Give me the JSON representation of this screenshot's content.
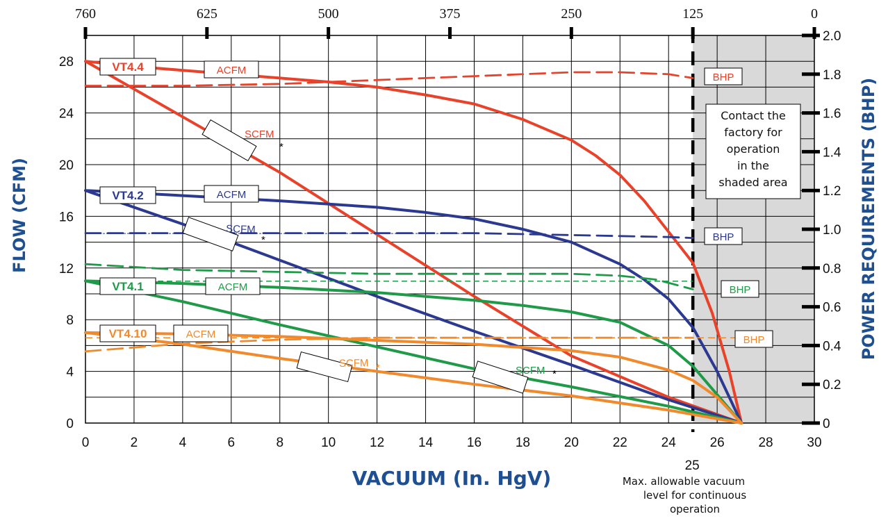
{
  "colors": {
    "VT4.4": "#e8432a",
    "VT4.2": "#2b3990",
    "VT4.1": "#1f9a48",
    "VT4.10": "#f08a2c",
    "axis_title": "#1d4f91",
    "shade": "#d9d9d9"
  },
  "chart_data": {
    "type": "line",
    "xlabel": "VACUUM (In. HgV)",
    "ylabel_left": "FLOW (CFM)",
    "ylabel_right": "POWER REQUIREMENTS (BHP)",
    "xlim": [
      0,
      30
    ],
    "ylim_left": [
      0,
      30
    ],
    "ylim_right": [
      0,
      2.0
    ],
    "grid": true,
    "x_ticks": [
      0,
      2,
      4,
      6,
      8,
      10,
      12,
      14,
      16,
      18,
      20,
      22,
      24,
      26,
      28,
      30
    ],
    "y_left_ticks": [
      0,
      4,
      8,
      12,
      16,
      20,
      24,
      28
    ],
    "y_right_ticks": [
      "0",
      "0.2",
      "0.4",
      "0.6",
      "0.8",
      "1.0",
      "1.2",
      "1.4",
      "1.6",
      "1.8",
      "2.0"
    ],
    "top_axis": {
      "labels": [
        "760",
        "625",
        "500",
        "375",
        "250",
        "125",
        "0"
      ],
      "positions_x": [
        0,
        5,
        10,
        15,
        20,
        25,
        30
      ]
    },
    "shaded_region": {
      "x_from": 25,
      "x_to": 30,
      "note": [
        "Contact the",
        "factory for",
        "operation",
        "in the",
        "shaded area"
      ]
    },
    "max_vacuum_line": {
      "x": 25,
      "label": "25",
      "caption": [
        "Max. allowable vacuum",
        "level for continuous",
        "operation"
      ]
    },
    "series": [
      {
        "model": "VT4.4",
        "name": "ACFM",
        "axis": "left",
        "style": "solid",
        "x": [
          0,
          2,
          4,
          6,
          8,
          10,
          12,
          14,
          16,
          18,
          20,
          21,
          22,
          23,
          24,
          25,
          25.8,
          26.5,
          27
        ],
        "y": [
          28,
          27.6,
          27.3,
          27,
          26.7,
          26.4,
          26,
          25.4,
          24.7,
          23.5,
          21.9,
          20.7,
          19.2,
          17.2,
          14.8,
          12.4,
          8.5,
          4,
          0
        ]
      },
      {
        "model": "VT4.4",
        "name": "SCFM*",
        "axis": "left",
        "style": "solid",
        "x": [
          0,
          4,
          8,
          12,
          16,
          20,
          24,
          27
        ],
        "y": [
          28,
          23.7,
          19.4,
          14.6,
          9.8,
          5.2,
          2.0,
          0
        ]
      },
      {
        "model": "VT4.4",
        "name": "BHP",
        "axis": "right",
        "style": "dashed",
        "x": [
          0,
          4,
          8,
          12,
          16,
          20,
          22,
          24,
          25
        ],
        "y": [
          1.74,
          1.74,
          1.75,
          1.77,
          1.79,
          1.81,
          1.81,
          1.8,
          1.78
        ]
      },
      {
        "model": "VT4.2",
        "name": "ACFM",
        "axis": "left",
        "style": "solid",
        "x": [
          0,
          4,
          8,
          12,
          14,
          16,
          18,
          20,
          22,
          23,
          24,
          25,
          26,
          27
        ],
        "y": [
          18,
          17.6,
          17.2,
          16.7,
          16.3,
          15.8,
          15,
          14,
          12.3,
          11.1,
          9.6,
          7.4,
          4,
          0
        ]
      },
      {
        "model": "VT4.2",
        "name": "SCFM*",
        "axis": "left",
        "style": "solid",
        "x": [
          0,
          4,
          8,
          12,
          16,
          20,
          24,
          27
        ],
        "y": [
          18,
          15.4,
          12.6,
          9.8,
          7.1,
          4.5,
          1.8,
          0
        ]
      },
      {
        "model": "VT4.2",
        "name": "BHP",
        "axis": "right",
        "style": "dashed",
        "x": [
          0,
          16,
          18,
          20,
          22,
          24,
          25
        ],
        "y": [
          0.98,
          0.98,
          0.975,
          0.97,
          0.965,
          0.96,
          0.955
        ]
      },
      {
        "model": "VT4.1",
        "name": "ACFM",
        "axis": "left",
        "style": "solid",
        "x": [
          0,
          4,
          8,
          12,
          16,
          18,
          20,
          22,
          24,
          25,
          26,
          27
        ],
        "y": [
          11,
          10.8,
          10.5,
          10.1,
          9.5,
          9.1,
          8.6,
          7.8,
          6,
          4.4,
          2.2,
          0
        ]
      },
      {
        "model": "VT4.1",
        "name": "SCFM*",
        "axis": "left",
        "style": "solid",
        "x": [
          0,
          4,
          8,
          12,
          16,
          20,
          24,
          27
        ],
        "y": [
          11,
          9.4,
          7.6,
          5.9,
          4.2,
          2.8,
          1.3,
          0
        ]
      },
      {
        "model": "VT4.1",
        "name": "BHP",
        "axis": "right",
        "style": "dashed",
        "x": [
          0,
          4,
          8,
          12,
          16,
          20,
          22,
          23.5,
          25
        ],
        "y": [
          0.82,
          0.79,
          0.78,
          0.77,
          0.77,
          0.77,
          0.76,
          0.74,
          0.69
        ]
      },
      {
        "model": "VT4.10",
        "name": "ACFM",
        "axis": "left",
        "style": "solid",
        "x": [
          0,
          4,
          8,
          12,
          16,
          20,
          22,
          24,
          25,
          26,
          27
        ],
        "y": [
          7,
          6.9,
          6.7,
          6.4,
          6.1,
          5.6,
          5.1,
          4.1,
          3.3,
          2,
          0
        ]
      },
      {
        "model": "VT4.10",
        "name": "SCFM*",
        "axis": "left",
        "style": "solid",
        "x": [
          0,
          4,
          8,
          12,
          16,
          20,
          24,
          27
        ],
        "y": [
          7,
          6.1,
          5,
          4,
          3,
          2.1,
          1,
          0
        ]
      },
      {
        "model": "VT4.10",
        "name": "BHP",
        "axis": "right",
        "style": "dashed",
        "x": [
          0,
          4,
          8,
          12,
          16,
          20,
          25
        ],
        "y": [
          0.37,
          0.41,
          0.43,
          0.44,
          0.44,
          0.44,
          0.44
        ]
      }
    ],
    "labels": {
      "models": [
        "VT4.4",
        "VT4.2",
        "VT4.1",
        "VT4.10"
      ],
      "acfm": "ACFM",
      "scfm": "SCFM",
      "asterisk": "*",
      "bhp": "BHP"
    }
  }
}
